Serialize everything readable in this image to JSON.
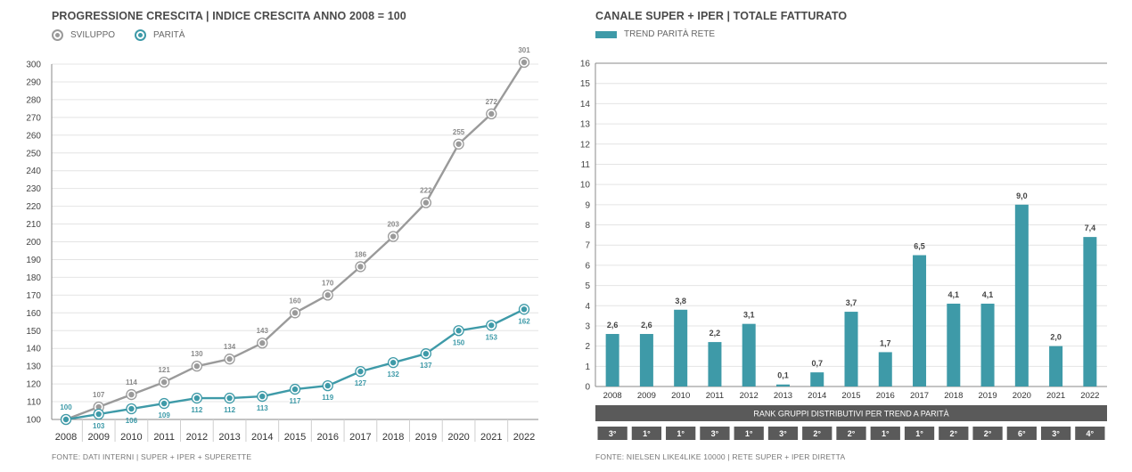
{
  "left": {
    "title": "PROGRESSIONE CRESCITA | INDICE CRESCITA ANNO 2008 = 100",
    "legend": [
      {
        "label": "SVILUPPO",
        "color": "#9a9a9a"
      },
      {
        "label": "PARITÀ",
        "color": "#3e9aa8"
      }
    ],
    "source": "FONTE: DATI INTERNI | SUPER + IPER + SUPERETTE"
  },
  "right": {
    "title": "CANALE SUPER + IPER | TOTALE FATTURATO",
    "legend_label": "TREND PARITÀ RETE",
    "rank_header": "RANK GRUPPI DISTRIBUTIVI PER TREND A PARITÀ",
    "ranks": [
      "3°",
      "1°",
      "1°",
      "3°",
      "1°",
      "3°",
      "2°",
      "2°",
      "1°",
      "1°",
      "2°",
      "2°",
      "6°",
      "3°",
      "4°"
    ],
    "source": "FONTE: NIELSEN LIKE4LIKE  10000 | RETE SUPER + IPER DIRETTA"
  },
  "colors": {
    "grey_line": "#9a9a9a",
    "teal": "#3e9aa8",
    "rank_bg": "#5a5a5a"
  },
  "chart_data": [
    {
      "type": "line",
      "title": "PROGRESSIONE CRESCITA | INDICE CRESCITA ANNO 2008 = 100",
      "x": [
        "2008",
        "2009",
        "2010",
        "2011",
        "2012",
        "2013",
        "2014",
        "2015",
        "2016",
        "2017",
        "2018",
        "2019",
        "2020",
        "2021",
        "2022"
      ],
      "series": [
        {
          "name": "SVILUPPO",
          "color": "#9a9a9a",
          "values": [
            100,
            107,
            114,
            121,
            130,
            134,
            143,
            160,
            170,
            186,
            203,
            222,
            255,
            272,
            301
          ]
        },
        {
          "name": "PARITÀ",
          "color": "#3e9aa8",
          "values": [
            100,
            103,
            106,
            109,
            112,
            112,
            113,
            117,
            119,
            127,
            132,
            137,
            150,
            153,
            162
          ]
        }
      ],
      "display_values": {
        "SVILUPPO": [
          100,
          107,
          114,
          121,
          130,
          134,
          143,
          160,
          170,
          186,
          203,
          222,
          255,
          272,
          301
        ],
        "PARITÀ": [
          100,
          103,
          106,
          109,
          112,
          112,
          113,
          117,
          119,
          127,
          132,
          137,
          150,
          153,
          162
        ]
      },
      "ylim": [
        100,
        300
      ],
      "yticks": [
        100,
        110,
        120,
        130,
        140,
        150,
        160,
        170,
        180,
        190,
        200,
        210,
        220,
        230,
        240,
        250,
        260,
        270,
        280,
        290,
        300
      ],
      "grid": "horizontal"
    },
    {
      "type": "bar",
      "title": "CANALE SUPER + IPER | TOTALE FATTURATO",
      "categories": [
        "2008",
        "2009",
        "2010",
        "2011",
        "2012",
        "2013",
        "2014",
        "2015",
        "2016",
        "2017",
        "2018",
        "2019",
        "2020",
        "2021",
        "2022"
      ],
      "series": [
        {
          "name": "TREND PARITÀ RETE",
          "color": "#3e9aa8",
          "values": [
            2.6,
            2.6,
            3.8,
            2.2,
            3.1,
            0.1,
            0.7,
            3.7,
            1.7,
            6.5,
            4.1,
            4.1,
            9.0,
            2.0,
            7.4
          ]
        }
      ],
      "labels": [
        "2,6",
        "2,6",
        "3,8",
        "2,2",
        "3,1",
        "0,1",
        "0,7",
        "3,7",
        "1,7",
        "6,5",
        "4,1",
        "4,1",
        "9,0",
        "2,0",
        "7,4"
      ],
      "ylim": [
        0,
        16
      ],
      "yticks": [
        0,
        1,
        2,
        3,
        4,
        5,
        6,
        7,
        8,
        9,
        10,
        11,
        12,
        13,
        14,
        15,
        16
      ],
      "grid": "horizontal"
    }
  ]
}
